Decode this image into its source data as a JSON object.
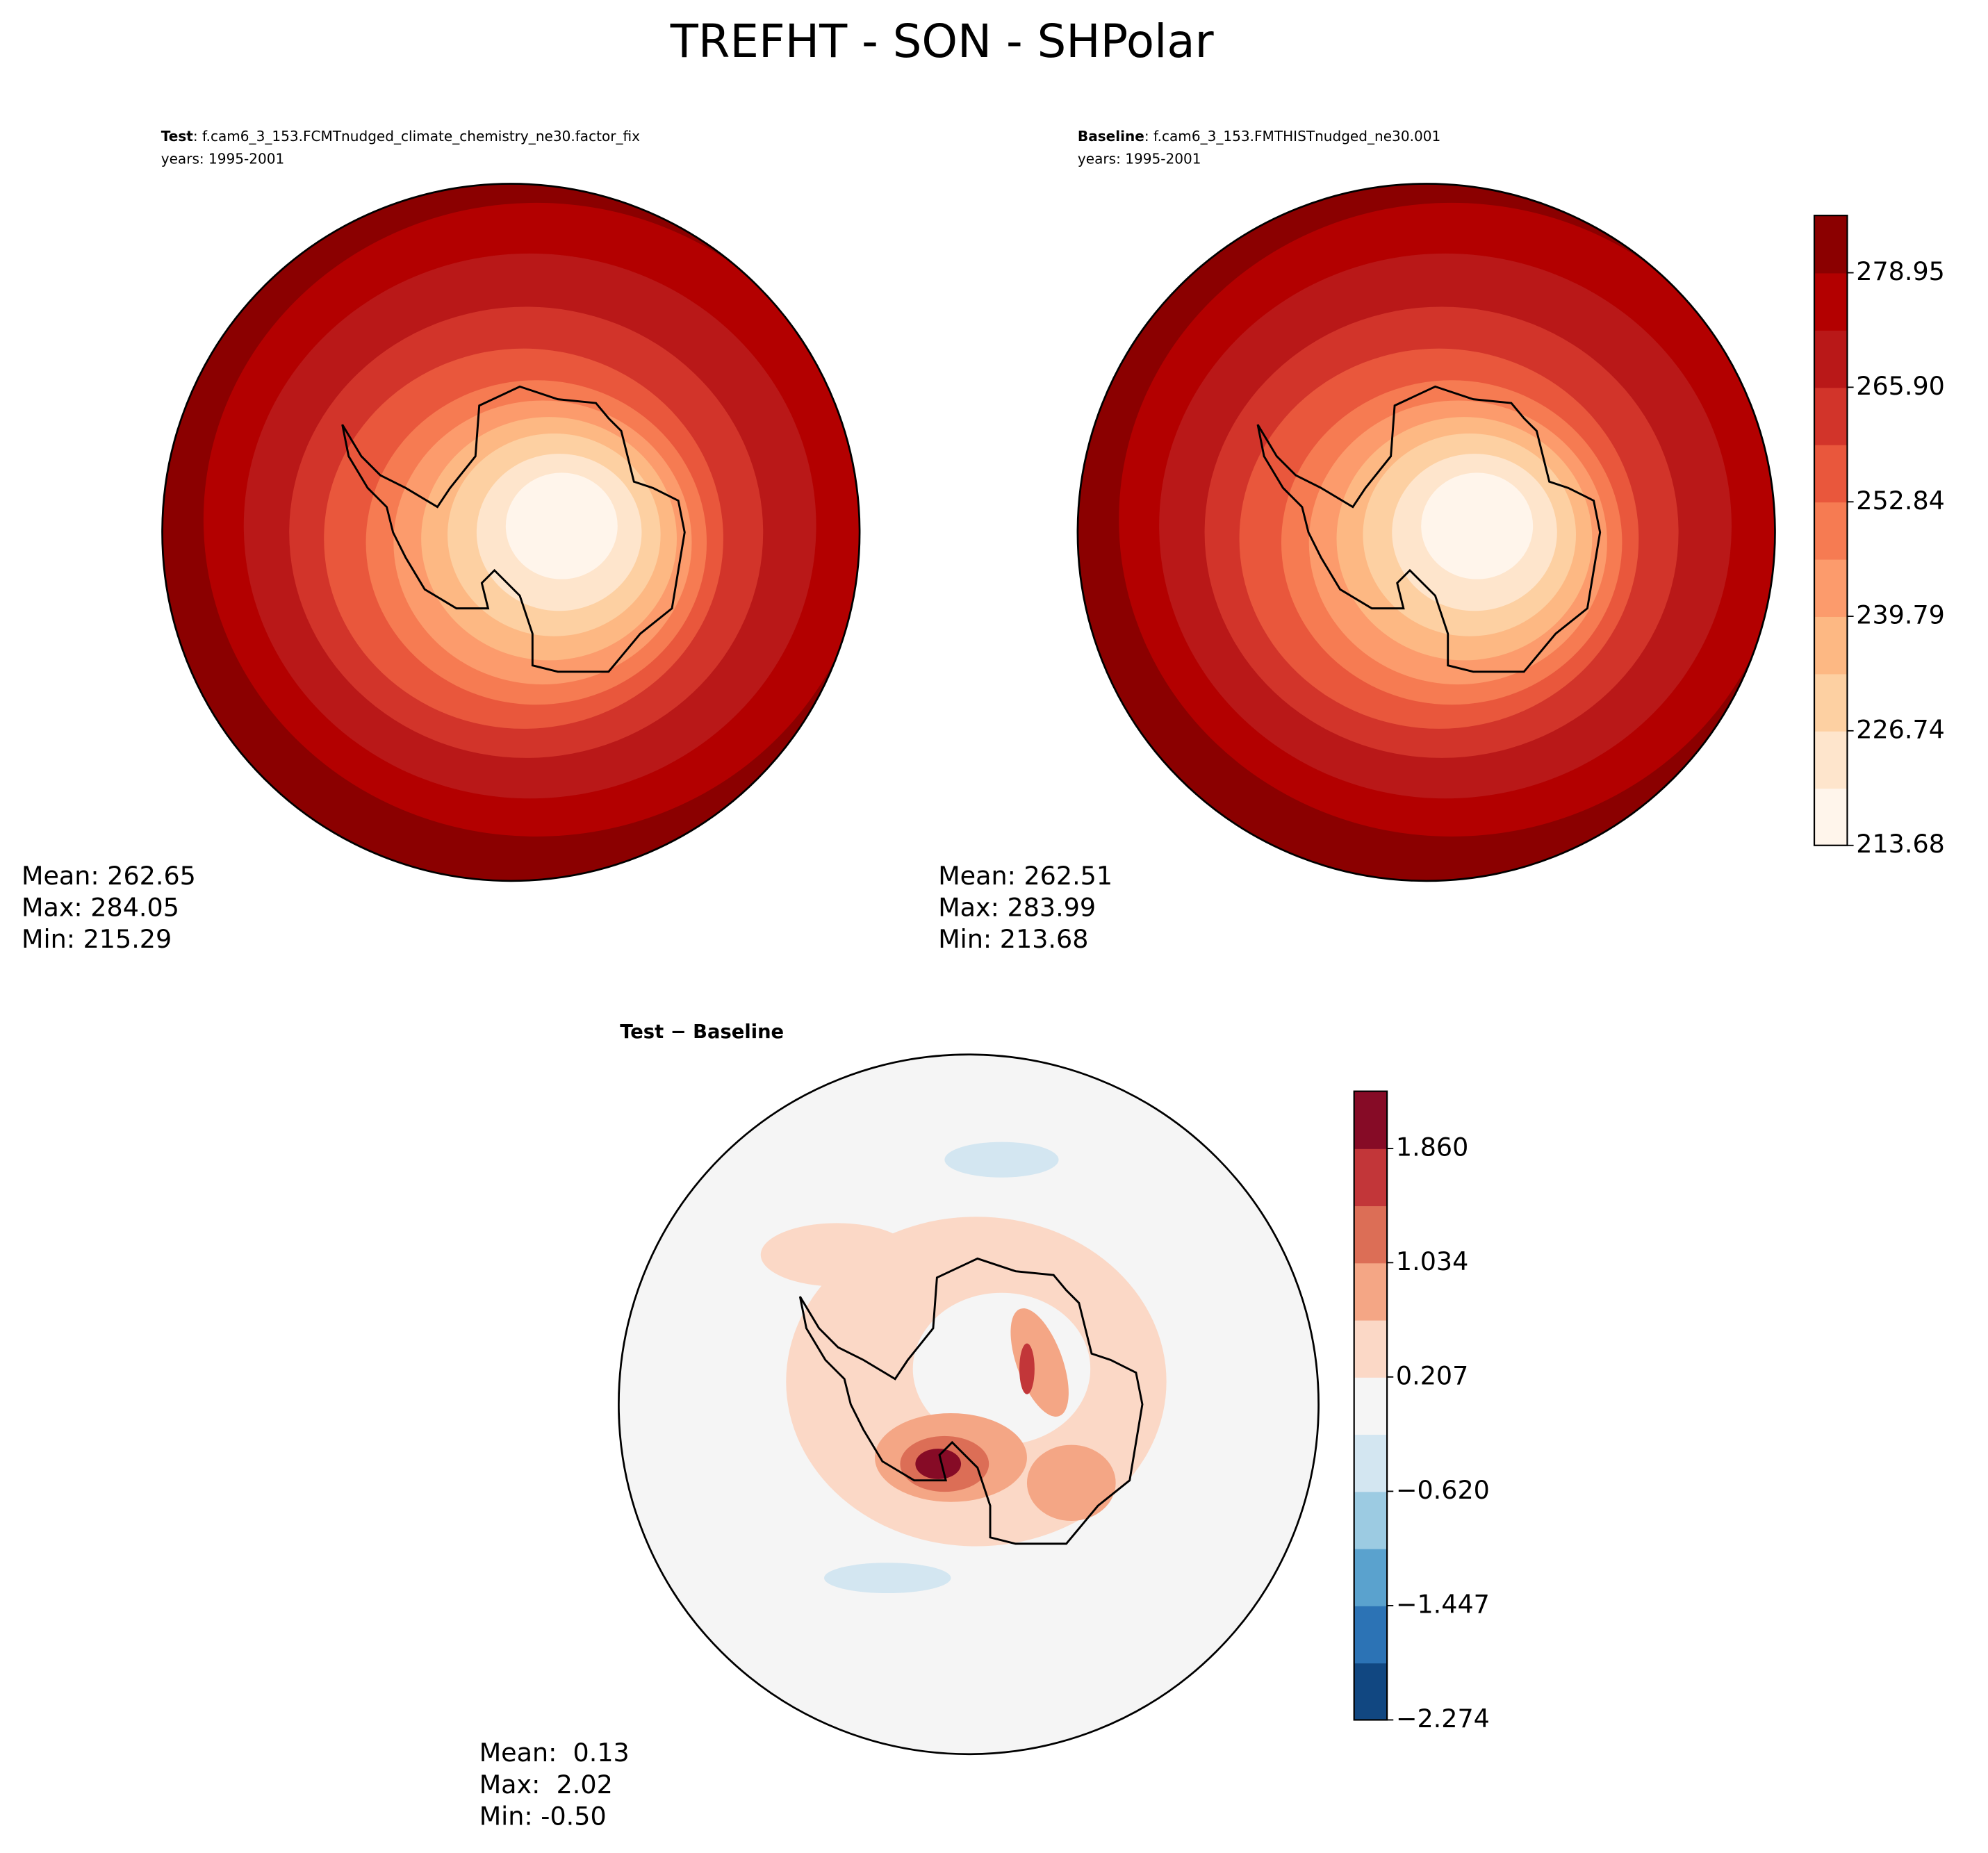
{
  "title": "TREFHT - SON - SHPolar",
  "panels": [
    {
      "label": "Test",
      "case": ": f.cam6_3_153.FCMTnudged_climate_chemistry_ne30.factor_fix",
      "years": "years: 1995-2001",
      "stats": [
        "Mean: 262.65",
        "Max: 284.05",
        "Min: 215.29"
      ]
    },
    {
      "label": "Baseline",
      "case": ": f.cam6_3_153.FMTHISTnudged_ne30.001",
      "years": "years: 1995-2001",
      "stats": [
        "Mean: 262.51",
        "Max: 283.99",
        "Min: 213.68"
      ]
    },
    {
      "label": "Test − Baseline",
      "stats": [
        "Mean:  0.13",
        "Max:  2.02",
        "Min: -0.50"
      ]
    }
  ],
  "colorbars": [
    {
      "clim": [
        213.68,
        285.48
      ],
      "ticks": [
        213.68,
        226.74,
        239.79,
        252.84,
        {
          "value": 265.9,
          "label": "265.90"
        },
        278.95
      ],
      "colors": [
        "#fff5eb",
        "#fee5cc",
        "#fdd0a2",
        "#fdb883",
        "#fc9b6c",
        "#f67b52",
        "#e9573c",
        "#d2342a",
        "#b91818",
        "#b30000",
        "#8b0000"
      ]
    },
    {
      "clim": [
        -2.274,
        2.274
      ],
      "ticks": [
        {
          "value": -2.274,
          "label": "−2.274"
        },
        {
          "value": -1.447,
          "label": "−1.447"
        },
        {
          "value": -0.62,
          "label": "−0.620"
        },
        0.207,
        1.034,
        {
          "value": 1.86,
          "label": "1.860"
        }
      ],
      "colors": [
        "#114781",
        "#2c73b5",
        "#5aa2ce",
        "#9ccbe2",
        "#d3e6f1",
        "#f5f5f5",
        "#fbd8c6",
        "#f4a685",
        "#dc6e56",
        "#c23639",
        "#860b26"
      ]
    }
  ]
}
